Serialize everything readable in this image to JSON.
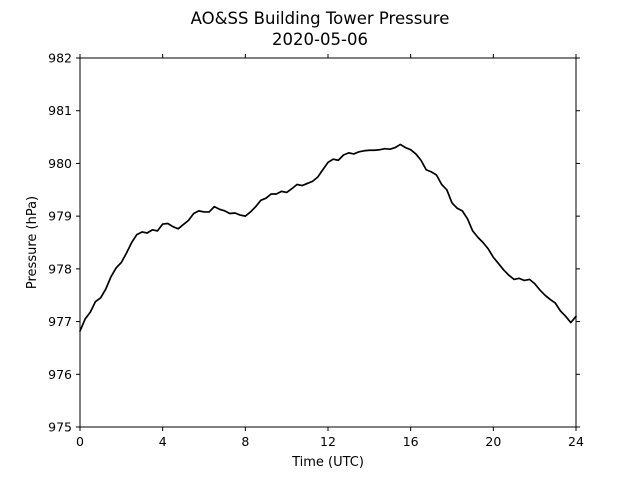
{
  "chart_data": {
    "type": "line",
    "title": "AO&SS Building Tower Pressure",
    "subtitle": "2020-05-06",
    "xlabel": "Time (UTC)",
    "ylabel": "Pressure (hPa)",
    "xlim": [
      0,
      24
    ],
    "ylim": [
      975,
      982
    ],
    "xticks": [
      0,
      4,
      8,
      12,
      16,
      20,
      24
    ],
    "yticks": [
      975,
      976,
      977,
      978,
      979,
      980,
      981,
      982
    ],
    "grid": false,
    "colors": {
      "line": "#000000",
      "axes": "#000000",
      "background": "#ffffff"
    },
    "series": [
      {
        "x": [
          0.0,
          0.25,
          0.5,
          0.75,
          1.0,
          1.25,
          1.5,
          1.75,
          2.0,
          2.25,
          2.5,
          2.75,
          3.0,
          3.25,
          3.5,
          3.75,
          4.0,
          4.25,
          4.5,
          4.75,
          5.0,
          5.25,
          5.5,
          5.75,
          6.0,
          6.25,
          6.5,
          6.75,
          7.0,
          7.25,
          7.5,
          7.75,
          8.0,
          8.25,
          8.5,
          8.75,
          9.0,
          9.25,
          9.5,
          9.75,
          10.0,
          10.25,
          10.5,
          10.75,
          11.0,
          11.25,
          11.5,
          11.75,
          12.0,
          12.25,
          12.5,
          12.75,
          13.0,
          13.25,
          13.5,
          13.75,
          14.0,
          14.25,
          14.5,
          14.75,
          15.0,
          15.25,
          15.5,
          15.75,
          16.0,
          16.25,
          16.5,
          16.75,
          17.0,
          17.25,
          17.5,
          17.75,
          18.0,
          18.25,
          18.5,
          18.75,
          19.0,
          19.25,
          19.5,
          19.75,
          20.0,
          20.25,
          20.5,
          20.75,
          21.0,
          21.25,
          21.5,
          21.75,
          22.0,
          22.25,
          22.5,
          22.75,
          23.0,
          23.25,
          23.5,
          23.75,
          24.0
        ],
        "y": [
          976.82,
          977.05,
          977.18,
          977.38,
          977.45,
          977.62,
          977.85,
          978.02,
          978.12,
          978.3,
          978.5,
          978.65,
          978.7,
          978.68,
          978.74,
          978.72,
          978.85,
          978.86,
          978.8,
          978.76,
          978.84,
          978.92,
          979.05,
          979.1,
          979.08,
          979.08,
          979.18,
          979.13,
          979.1,
          979.05,
          979.06,
          979.02,
          979.0,
          979.08,
          979.18,
          979.3,
          979.34,
          979.42,
          979.42,
          979.47,
          979.45,
          979.52,
          979.6,
          979.58,
          979.62,
          979.66,
          979.74,
          979.88,
          980.02,
          980.08,
          980.06,
          980.16,
          980.2,
          980.18,
          980.22,
          980.24,
          980.25,
          980.25,
          980.26,
          980.28,
          980.27,
          980.3,
          980.36,
          980.3,
          980.26,
          980.18,
          980.06,
          979.88,
          979.84,
          979.78,
          979.6,
          979.5,
          979.25,
          979.15,
          979.1,
          978.95,
          978.72,
          978.6,
          978.5,
          978.38,
          978.22,
          978.1,
          977.98,
          977.88,
          977.8,
          977.82,
          977.78,
          977.8,
          977.72,
          977.6,
          977.5,
          977.42,
          977.35,
          977.2,
          977.1,
          976.98,
          977.1
        ]
      }
    ]
  }
}
